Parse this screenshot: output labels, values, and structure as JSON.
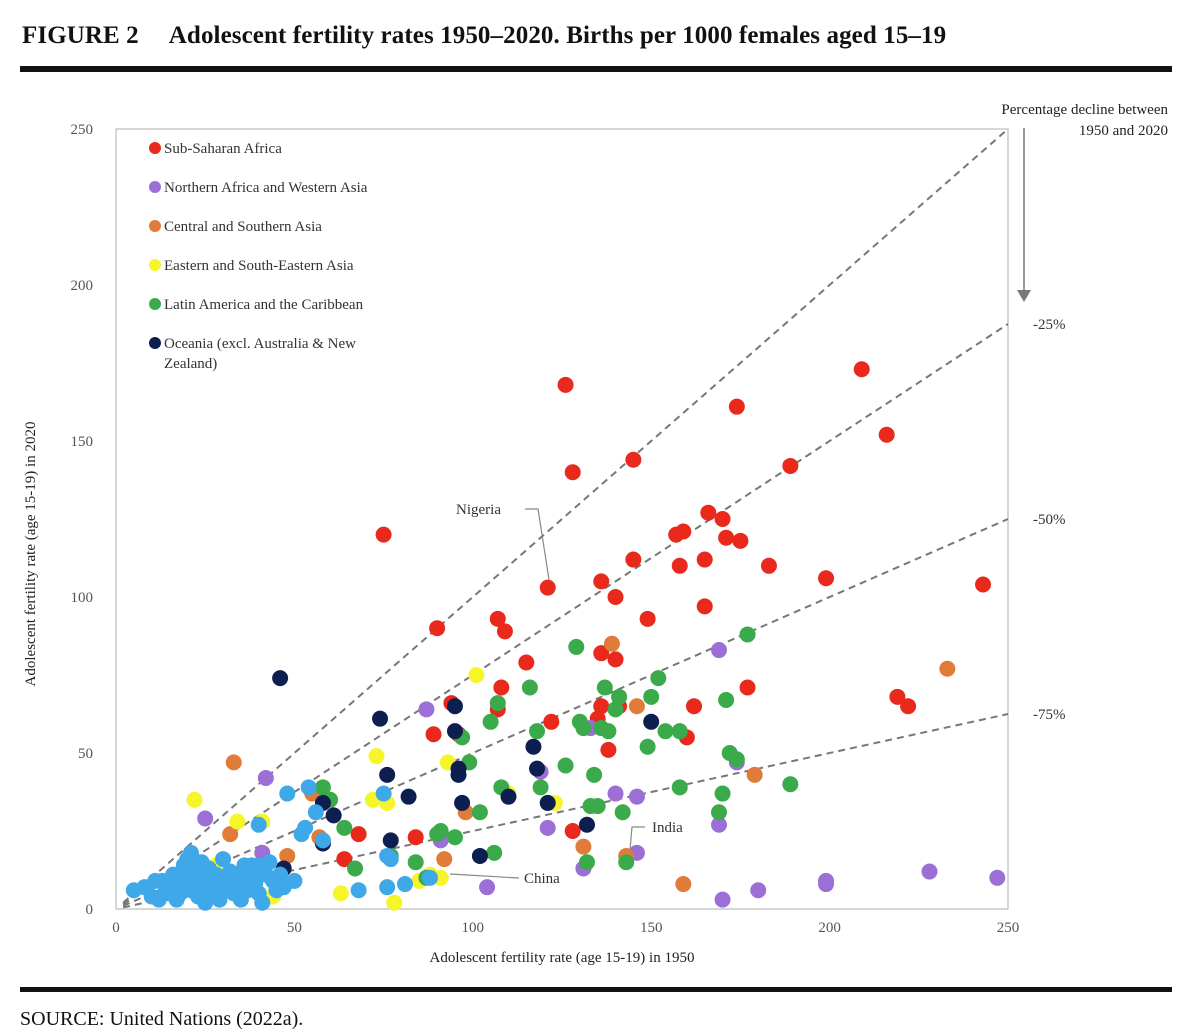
{
  "header": {
    "figure_number": "FIGURE 2",
    "title": "Adolescent fertility rates 1950–2020. Births per 1000 females aged 15–19"
  },
  "source": "SOURCE: United Nations (2022a).",
  "chart_data": {
    "type": "scatter",
    "xlabel": "Adolescent fertility rate (age 15-19) in 1950",
    "ylabel": "Adolescent fertility rate (age 15-19) in 2020",
    "xlim": [
      0,
      250
    ],
    "ylim": [
      0,
      250
    ],
    "x_ticks": [
      "0",
      "50",
      "100",
      "150",
      "200",
      "250"
    ],
    "y_ticks": [
      "0",
      "50",
      "100",
      "150",
      "200",
      "250"
    ],
    "grid": false,
    "legend_position": "top-left",
    "decline_header": [
      "Percentage decline between",
      "1950 and 2020"
    ],
    "reference_lines": [
      {
        "label": "",
        "slope": 1.0
      },
      {
        "label": "-25%",
        "slope": 0.75
      },
      {
        "label": "-50%",
        "slope": 0.5
      },
      {
        "label": "-75%",
        "slope": 0.25
      }
    ],
    "annotations": [
      {
        "text": "Nigeria",
        "x": 121,
        "y": 103
      },
      {
        "text": "India",
        "x": 143,
        "y": 17
      },
      {
        "text": "China",
        "x": 95,
        "y": 11
      }
    ],
    "series": [
      {
        "name": "Sub-Saharan Africa",
        "color": "#e8291c",
        "points": [
          [
            75,
            120
          ],
          [
            90,
            90
          ],
          [
            126,
            168
          ],
          [
            128,
            140
          ],
          [
            145,
            144
          ],
          [
            121,
            103
          ],
          [
            107,
            93
          ],
          [
            109,
            89
          ],
          [
            115,
            79
          ],
          [
            122,
            60
          ],
          [
            108,
            71
          ],
          [
            107,
            64
          ],
          [
            94,
            66
          ],
          [
            96,
            56
          ],
          [
            89,
            56
          ],
          [
            84,
            23
          ],
          [
            68,
            24
          ],
          [
            64,
            16
          ],
          [
            128,
            25
          ],
          [
            135,
            61
          ],
          [
            136,
            65
          ],
          [
            138,
            51
          ],
          [
            141,
            65
          ],
          [
            136,
            82
          ],
          [
            140,
            80
          ],
          [
            136,
            105
          ],
          [
            140,
            100
          ],
          [
            145,
            112
          ],
          [
            149,
            93
          ],
          [
            157,
            120
          ],
          [
            159,
            121
          ],
          [
            158,
            110
          ],
          [
            165,
            112
          ],
          [
            166,
            127
          ],
          [
            170,
            125
          ],
          [
            171,
            119
          ],
          [
            175,
            118
          ],
          [
            165,
            97
          ],
          [
            160,
            55
          ],
          [
            162,
            65
          ],
          [
            174,
            161
          ],
          [
            183,
            110
          ],
          [
            189,
            142
          ],
          [
            199,
            106
          ],
          [
            177,
            71
          ],
          [
            209,
            173
          ],
          [
            216,
            152
          ],
          [
            219,
            68
          ],
          [
            222,
            65
          ],
          [
            243,
            104
          ]
        ]
      },
      {
        "name": "Northern Africa and Western Asia",
        "color": "#9b6fd6",
        "points": [
          [
            25,
            29
          ],
          [
            42,
            42
          ],
          [
            41,
            18
          ],
          [
            87,
            64
          ],
          [
            91,
            22
          ],
          [
            104,
            7
          ],
          [
            119,
            44
          ],
          [
            121,
            26
          ],
          [
            131,
            13
          ],
          [
            133,
            58
          ],
          [
            140,
            37
          ],
          [
            146,
            36
          ],
          [
            146,
            18
          ],
          [
            169,
            83
          ],
          [
            169,
            27
          ],
          [
            170,
            3
          ],
          [
            174,
            47
          ],
          [
            180,
            6
          ],
          [
            199,
            8
          ],
          [
            199,
            9
          ],
          [
            228,
            12
          ],
          [
            247,
            10
          ]
        ]
      },
      {
        "name": "Central and Southern Asia",
        "color": "#e07b39",
        "points": [
          [
            33,
            47
          ],
          [
            32,
            24
          ],
          [
            48,
            17
          ],
          [
            55,
            37
          ],
          [
            57,
            23
          ],
          [
            92,
            16
          ],
          [
            98,
            31
          ],
          [
            131,
            20
          ],
          [
            139,
            85
          ],
          [
            146,
            65
          ],
          [
            143,
            17
          ],
          [
            159,
            8
          ],
          [
            179,
            43
          ],
          [
            233,
            77
          ]
        ]
      },
      {
        "name": "Eastern and South-Eastern Asia",
        "color": "#f5f52a",
        "points": [
          [
            22,
            35
          ],
          [
            18,
            6
          ],
          [
            23,
            11
          ],
          [
            30,
            6
          ],
          [
            34,
            28
          ],
          [
            41,
            28
          ],
          [
            44,
            4
          ],
          [
            45,
            9
          ],
          [
            63,
            5
          ],
          [
            72,
            35
          ],
          [
            73,
            49
          ],
          [
            76,
            34
          ],
          [
            78,
            2
          ],
          [
            85,
            9
          ],
          [
            88,
            11
          ],
          [
            91,
            10
          ],
          [
            93,
            47
          ],
          [
            101,
            75
          ],
          [
            110,
            37
          ],
          [
            123,
            34
          ],
          [
            28,
            14
          ],
          [
            37,
            8
          ]
        ]
      },
      {
        "name": "Latin America and the Caribbean",
        "color": "#3aaa4a",
        "points": [
          [
            45,
            9
          ],
          [
            58,
            39
          ],
          [
            60,
            35
          ],
          [
            64,
            26
          ],
          [
            67,
            13
          ],
          [
            77,
            17
          ],
          [
            84,
            15
          ],
          [
            87,
            10
          ],
          [
            90,
            24
          ],
          [
            91,
            25
          ],
          [
            95,
            23
          ],
          [
            97,
            55
          ],
          [
            99,
            47
          ],
          [
            102,
            31
          ],
          [
            105,
            60
          ],
          [
            107,
            66
          ],
          [
            106,
            18
          ],
          [
            108,
            39
          ],
          [
            116,
            71
          ],
          [
            118,
            57
          ],
          [
            119,
            39
          ],
          [
            126,
            46
          ],
          [
            129,
            84
          ],
          [
            130,
            60
          ],
          [
            131,
            58
          ],
          [
            132,
            15
          ],
          [
            133,
            33
          ],
          [
            134,
            43
          ],
          [
            135,
            33
          ],
          [
            136,
            58
          ],
          [
            137,
            71
          ],
          [
            138,
            57
          ],
          [
            140,
            64
          ],
          [
            141,
            68
          ],
          [
            142,
            31
          ],
          [
            143,
            15
          ],
          [
            149,
            52
          ],
          [
            150,
            68
          ],
          [
            152,
            74
          ],
          [
            154,
            57
          ],
          [
            158,
            39
          ],
          [
            158,
            57
          ],
          [
            169,
            31
          ],
          [
            170,
            37
          ],
          [
            171,
            67
          ],
          [
            172,
            50
          ],
          [
            174,
            48
          ],
          [
            177,
            88
          ],
          [
            189,
            40
          ]
        ]
      },
      {
        "name": "Oceania (excl. Australia & New Zealand)",
        "color": "#0d1f50",
        "points": [
          [
            46,
            74
          ],
          [
            47,
            13
          ],
          [
            58,
            34
          ],
          [
            58,
            21
          ],
          [
            61,
            30
          ],
          [
            74,
            61
          ],
          [
            76,
            43
          ],
          [
            77,
            22
          ],
          [
            82,
            36
          ],
          [
            95,
            65
          ],
          [
            95,
            57
          ],
          [
            96,
            45
          ],
          [
            96,
            43
          ],
          [
            97,
            34
          ],
          [
            102,
            17
          ],
          [
            110,
            36
          ],
          [
            117,
            52
          ],
          [
            118,
            45
          ],
          [
            121,
            34
          ],
          [
            132,
            27
          ],
          [
            150,
            60
          ]
        ]
      },
      {
        "name": "",
        "color": "#3ea8e8",
        "points": [
          [
            5,
            6
          ],
          [
            8,
            7
          ],
          [
            10,
            4
          ],
          [
            11,
            9
          ],
          [
            12,
            3
          ],
          [
            13,
            9
          ],
          [
            14,
            7
          ],
          [
            15,
            5
          ],
          [
            16,
            11
          ],
          [
            17,
            3
          ],
          [
            17,
            8
          ],
          [
            18,
            5
          ],
          [
            19,
            14
          ],
          [
            19,
            9
          ],
          [
            20,
            16
          ],
          [
            20,
            11
          ],
          [
            21,
            18
          ],
          [
            21,
            6
          ],
          [
            22,
            14
          ],
          [
            22,
            8
          ],
          [
            23,
            4
          ],
          [
            23,
            12
          ],
          [
            24,
            10
          ],
          [
            24,
            15
          ],
          [
            25,
            6
          ],
          [
            25,
            2
          ],
          [
            26,
            9
          ],
          [
            26,
            13
          ],
          [
            27,
            4
          ],
          [
            28,
            11
          ],
          [
            28,
            7
          ],
          [
            29,
            3
          ],
          [
            30,
            16
          ],
          [
            30,
            9
          ],
          [
            31,
            6
          ],
          [
            32,
            12
          ],
          [
            33,
            5
          ],
          [
            33,
            10
          ],
          [
            34,
            7
          ],
          [
            35,
            3
          ],
          [
            35,
            11
          ],
          [
            36,
            9
          ],
          [
            36,
            14
          ],
          [
            37,
            6
          ],
          [
            38,
            14
          ],
          [
            38,
            10
          ],
          [
            39,
            8
          ],
          [
            40,
            14
          ],
          [
            40,
            27
          ],
          [
            40,
            5
          ],
          [
            41,
            2
          ],
          [
            42,
            11
          ],
          [
            43,
            15
          ],
          [
            44,
            9
          ],
          [
            45,
            6
          ],
          [
            46,
            11
          ],
          [
            47,
            7
          ],
          [
            48,
            37
          ],
          [
            50,
            9
          ],
          [
            52,
            24
          ],
          [
            53,
            26
          ],
          [
            54,
            39
          ],
          [
            56,
            31
          ],
          [
            58,
            22
          ],
          [
            68,
            6
          ],
          [
            75,
            37
          ],
          [
            76,
            7
          ],
          [
            76,
            17
          ],
          [
            77,
            16
          ],
          [
            81,
            8
          ],
          [
            88,
            10
          ]
        ]
      }
    ]
  }
}
